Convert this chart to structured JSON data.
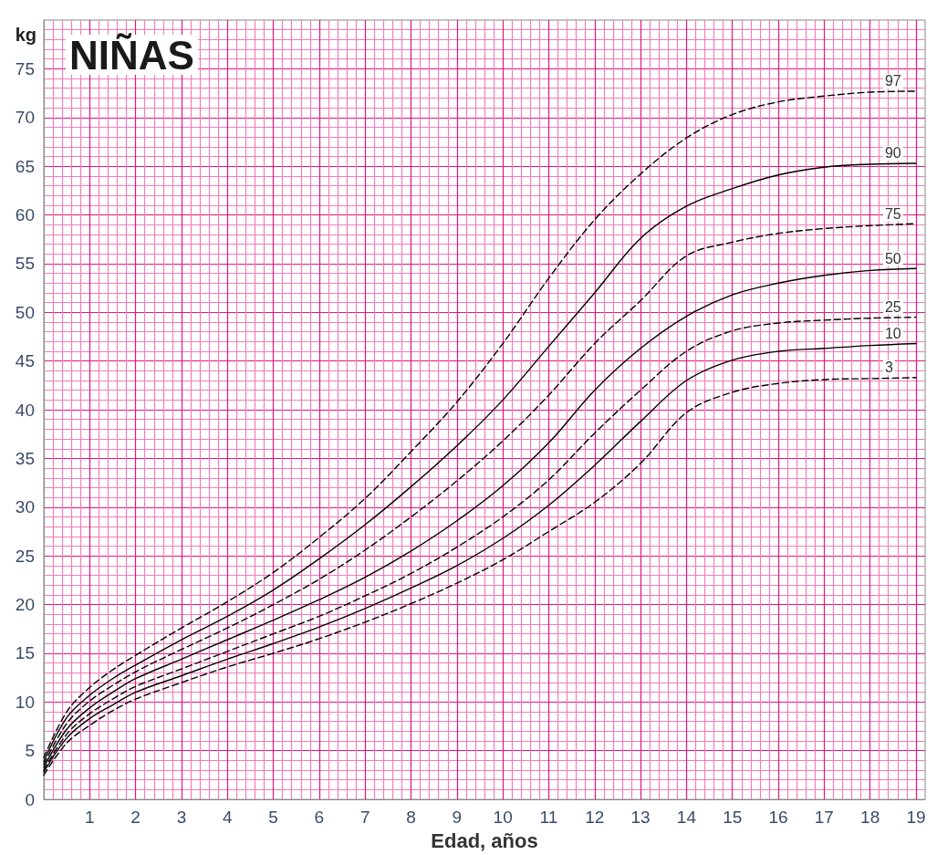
{
  "chart_data": {
    "type": "line",
    "title": "NIÑAS",
    "xlabel": "Edad, años",
    "ylabel": "kg",
    "x": [
      0,
      0.5,
      1,
      1.5,
      2,
      3,
      4,
      5,
      6,
      7,
      8,
      9,
      10,
      11,
      12,
      13,
      14,
      15,
      16,
      17,
      18,
      19
    ],
    "series": [
      {
        "name": "97",
        "color": "#000000",
        "line_style": "dashed",
        "values": [
          4.3,
          9.0,
          11.5,
          13.3,
          14.8,
          17.6,
          20.3,
          23.3,
          26.9,
          30.9,
          35.7,
          40.8,
          46.8,
          53.5,
          59.5,
          64.2,
          67.9,
          70.3,
          71.6,
          72.2,
          72.6,
          72.7
        ]
      },
      {
        "name": "90",
        "color": "#000000",
        "line_style": "solid",
        "values": [
          3.9,
          8.4,
          10.7,
          12.4,
          13.8,
          16.4,
          18.8,
          21.5,
          24.7,
          28.2,
          32.1,
          36.3,
          41.0,
          46.5,
          52.0,
          57.6,
          60.9,
          62.7,
          64.1,
          64.9,
          65.2,
          65.3
        ]
      },
      {
        "name": "75",
        "color": "#000000",
        "line_style": "dashed",
        "values": [
          3.6,
          7.8,
          10.1,
          11.7,
          13.1,
          15.4,
          17.6,
          20.0,
          22.6,
          25.6,
          29.0,
          32.7,
          36.8,
          41.5,
          46.8,
          51.2,
          55.8,
          57.2,
          58.1,
          58.6,
          58.9,
          59.1
        ]
      },
      {
        "name": "50",
        "color": "#000000",
        "line_style": "solid",
        "values": [
          3.3,
          7.2,
          9.4,
          11.0,
          12.4,
          14.4,
          16.4,
          18.4,
          20.5,
          22.8,
          25.5,
          28.6,
          32.2,
          36.6,
          42.0,
          46.3,
          49.6,
          51.8,
          53.0,
          53.8,
          54.3,
          54.5
        ]
      },
      {
        "name": "25",
        "color": "#000000",
        "line_style": "dashed",
        "values": [
          3.0,
          6.7,
          8.8,
          10.3,
          11.6,
          13.4,
          15.2,
          17.0,
          18.8,
          20.9,
          23.2,
          25.9,
          29.0,
          32.8,
          37.6,
          42.0,
          46.0,
          48.1,
          48.9,
          49.2,
          49.4,
          49.5
        ]
      },
      {
        "name": "10",
        "color": "#000000",
        "line_style": "solid",
        "values": [
          2.8,
          6.3,
          8.3,
          9.7,
          11.0,
          12.7,
          14.4,
          16.0,
          17.7,
          19.6,
          21.7,
          24.0,
          26.8,
          30.2,
          34.3,
          38.8,
          43.0,
          45.1,
          46.0,
          46.3,
          46.6,
          46.8
        ]
      },
      {
        "name": "3",
        "color": "#000000",
        "line_style": "dashed",
        "values": [
          2.5,
          5.8,
          7.6,
          9.1,
          10.3,
          12.0,
          13.6,
          15.0,
          16.5,
          18.2,
          20.1,
          22.2,
          24.6,
          27.5,
          30.5,
          34.5,
          39.7,
          41.8,
          42.7,
          43.1,
          43.2,
          43.3
        ]
      }
    ],
    "xlim": [
      0,
      19.2
    ],
    "xticks": [
      {
        "value": 0.2,
        "label": null
      },
      {
        "value": 0.4,
        "label": null
      },
      {
        "value": 0.6,
        "label": null
      },
      {
        "value": 0.8,
        "label": null
      },
      1,
      {
        "value": 1.2,
        "label": null
      },
      {
        "value": 1.4,
        "label": null
      },
      {
        "value": 1.6,
        "label": null
      },
      {
        "value": 1.8,
        "label": null
      },
      2,
      {
        "value": 2.2,
        "label": null
      },
      {
        "value": 2.4,
        "label": null
      },
      {
        "value": 2.6,
        "label": null
      },
      {
        "value": 2.8,
        "label": null
      },
      3,
      {
        "value": 3.2,
        "label": null
      },
      {
        "value": 3.4,
        "label": null
      },
      {
        "value": 3.6,
        "label": null
      },
      {
        "value": 3.8,
        "label": null
      },
      4,
      {
        "value": 4.2,
        "label": null
      },
      {
        "value": 4.4,
        "label": null
      },
      {
        "value": 4.6,
        "label": null
      },
      {
        "value": 4.8,
        "label": null
      },
      5,
      {
        "value": 5.2,
        "label": null
      },
      {
        "value": 5.4,
        "label": null
      },
      {
        "value": 5.6,
        "label": null
      },
      {
        "value": 5.8,
        "label": null
      },
      6,
      {
        "value": 6.2,
        "label": null
      },
      {
        "value": 6.4,
        "label": null
      },
      {
        "value": 6.6,
        "label": null
      },
      {
        "value": 6.8,
        "label": null
      },
      7,
      {
        "value": 7.2,
        "label": null
      },
      {
        "value": 7.4,
        "label": null
      },
      {
        "value": 7.6,
        "label": null
      },
      {
        "value": 7.8,
        "label": null
      },
      8,
      {
        "value": 8.2,
        "label": null
      },
      {
        "value": 8.4,
        "label": null
      },
      {
        "value": 8.6,
        "label": null
      },
      {
        "value": 8.8,
        "label": null
      },
      9,
      {
        "value": 9.2,
        "label": null
      },
      {
        "value": 9.4,
        "label": null
      },
      {
        "value": 9.6,
        "label": null
      },
      {
        "value": 9.8,
        "label": null
      },
      10,
      {
        "value": 10.2,
        "label": null
      },
      {
        "value": 10.4,
        "label": null
      },
      {
        "value": 10.6,
        "label": null
      },
      {
        "value": 10.8,
        "label": null
      },
      11,
      {
        "value": 11.2,
        "label": null
      },
      {
        "value": 11.4,
        "label": null
      },
      {
        "value": 11.6,
        "label": null
      },
      {
        "value": 11.8,
        "label": null
      },
      12,
      {
        "value": 12.2,
        "label": null
      },
      {
        "value": 12.4,
        "label": null
      },
      {
        "value": 12.6,
        "label": null
      },
      {
        "value": 12.8,
        "label": null
      },
      13,
      {
        "value": 13.2,
        "label": null
      },
      {
        "value": 13.4,
        "label": null
      },
      {
        "value": 13.6,
        "label": null
      },
      {
        "value": 13.8,
        "label": null
      },
      14,
      {
        "value": 14.2,
        "label": null
      },
      {
        "value": 14.4,
        "label": null
      },
      {
        "value": 14.6,
        "label": null
      },
      {
        "value": 14.8,
        "label": null
      },
      15,
      {
        "value": 15.2,
        "label": null
      },
      {
        "value": 15.4,
        "label": null
      },
      {
        "value": 15.6,
        "label": null
      },
      {
        "value": 15.8,
        "label": null
      },
      16,
      {
        "value": 16.2,
        "label": null
      },
      {
        "value": 16.4,
        "label": null
      },
      {
        "value": 16.6,
        "label": null
      },
      {
        "value": 16.8,
        "label": null
      },
      17,
      {
        "value": 17.2,
        "label": null
      },
      {
        "value": 17.4,
        "label": null
      },
      {
        "value": 17.6,
        "label": null
      },
      {
        "value": 17.8,
        "label": null
      },
      18,
      {
        "value": 18.2,
        "label": null
      },
      {
        "value": 18.4,
        "label": null
      },
      {
        "value": 18.6,
        "label": null
      },
      {
        "value": 18.8,
        "label": null
      },
      19
    ],
    "ylim": [
      0,
      80
    ],
    "yticks": [
      0,
      {
        "value": 1,
        "label": null
      },
      {
        "value": 2,
        "label": null
      },
      {
        "value": 3,
        "label": null
      },
      {
        "value": 4,
        "label": null
      },
      5,
      {
        "value": 6,
        "label": null
      },
      {
        "value": 7,
        "label": null
      },
      {
        "value": 8,
        "label": null
      },
      {
        "value": 9,
        "label": null
      },
      10,
      {
        "value": 11,
        "label": null
      },
      {
        "value": 12,
        "label": null
      },
      {
        "value": 13,
        "label": null
      },
      {
        "value": 14,
        "label": null
      },
      15,
      {
        "value": 16,
        "label": null
      },
      {
        "value": 17,
        "label": null
      },
      {
        "value": 18,
        "label": null
      },
      {
        "value": 19,
        "label": null
      },
      20,
      {
        "value": 21,
        "label": null
      },
      {
        "value": 22,
        "label": null
      },
      {
        "value": 23,
        "label": null
      },
      {
        "value": 24,
        "label": null
      },
      25,
      {
        "value": 26,
        "label": null
      },
      {
        "value": 27,
        "label": null
      },
      {
        "value": 28,
        "label": null
      },
      {
        "value": 29,
        "label": null
      },
      30,
      {
        "value": 31,
        "label": null
      },
      {
        "value": 32,
        "label": null
      },
      {
        "value": 33,
        "label": null
      },
      {
        "value": 34,
        "label": null
      },
      35,
      {
        "value": 36,
        "label": null
      },
      {
        "value": 37,
        "label": null
      },
      {
        "value": 38,
        "label": null
      },
      {
        "value": 39,
        "label": null
      },
      40,
      {
        "value": 41,
        "label": null
      },
      {
        "value": 42,
        "label": null
      },
      {
        "value": 43,
        "label": null
      },
      {
        "value": 44,
        "label": null
      },
      45,
      {
        "value": 46,
        "label": null
      },
      {
        "value": 47,
        "label": null
      },
      {
        "value": 48,
        "label": null
      },
      {
        "value": 49,
        "label": null
      },
      50,
      {
        "value": 51,
        "label": null
      },
      {
        "value": 52,
        "label": null
      },
      {
        "value": 53,
        "label": null
      },
      {
        "value": 54,
        "label": null
      },
      55,
      {
        "value": 56,
        "label": null
      },
      {
        "value": 57,
        "label": null
      },
      {
        "value": 58,
        "label": null
      },
      {
        "value": 59,
        "label": null
      },
      60,
      {
        "value": 61,
        "label": null
      },
      {
        "value": 62,
        "label": null
      },
      {
        "value": 63,
        "label": null
      },
      {
        "value": 64,
        "label": null
      },
      65,
      {
        "value": 66,
        "label": null
      },
      {
        "value": 67,
        "label": null
      },
      {
        "value": 68,
        "label": null
      },
      {
        "value": 69,
        "label": null
      },
      70,
      {
        "value": 71,
        "label": null
      },
      {
        "value": 72,
        "label": null
      },
      {
        "value": 73,
        "label": null
      },
      {
        "value": 74,
        "label": null
      },
      75,
      {
        "value": 76,
        "label": null
      },
      {
        "value": 77,
        "label": null
      },
      {
        "value": 78,
        "label": null
      },
      {
        "value": 79,
        "label": null
      }
    ],
    "grid": true,
    "legend": false,
    "marker": "none"
  }
}
